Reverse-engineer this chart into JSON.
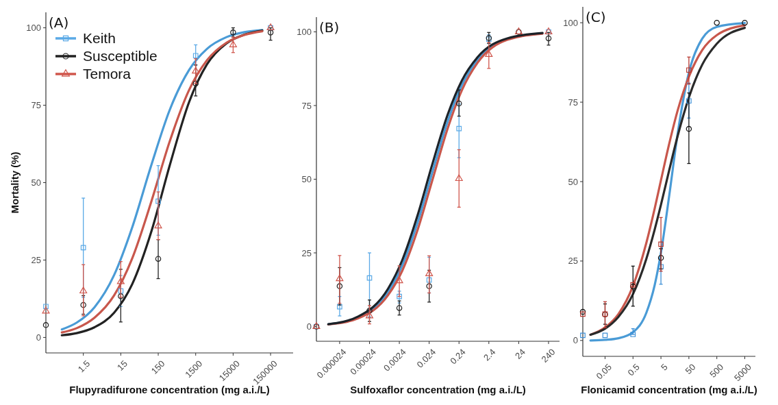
{
  "chart_data": [
    {
      "type": "scatter",
      "title": "(A)",
      "xlabel": "Flupyradifurone concentration (mg a.i./L)",
      "ylabel": "Mortality (%)",
      "log": "x",
      "xlim": [
        0.15,
        600000
      ],
      "xticks": [
        1.5,
        15,
        150,
        1500,
        15000,
        150000
      ],
      "ylim": [
        -5,
        105
      ],
      "yticks": [
        0,
        25,
        50,
        75,
        100
      ],
      "legend": "top left",
      "series": [
        {
          "name": "Keith",
          "color": "#5aa9e6",
          "marker": "square",
          "x": [
            0.15,
            1.5,
            15,
            150,
            1500,
            150000
          ],
          "values": [
            10,
            29,
            15,
            44,
            91,
            100
          ],
          "errors": [
            null,
            [
              13,
              45
            ],
            [
              10,
              20
            ],
            [
              33,
              55.5
            ],
            [
              88,
              94.5
            ],
            null
          ]
        },
        {
          "name": "Susceptible",
          "color": "#222222",
          "marker": "circle",
          "x": [
            0.15,
            1.5,
            15,
            150,
            1500,
            15000,
            150000
          ],
          "values": [
            4,
            10.5,
            13.3,
            25.4,
            82,
            98.5,
            98.5
          ],
          "errors": [
            null,
            [
              7.5,
              13.5
            ],
            [
              5,
              22
            ],
            [
              19,
              31.6
            ],
            [
              78,
              88
            ],
            [
              97,
              100
            ],
            [
              96,
              100
            ]
          ]
        },
        {
          "name": "Temora",
          "color": "#d0564c",
          "marker": "triangle",
          "x": [
            0.15,
            1.5,
            15,
            150,
            1500,
            15000,
            150000
          ],
          "values": [
            8.5,
            15,
            18,
            36,
            86,
            94.5,
            100
          ],
          "errors": [
            null,
            [
              7,
              23.5
            ],
            [
              13,
              24.5
            ],
            [
              31.6,
              47
            ],
            [
              82,
              90
            ],
            [
              92,
              97
            ],
            null
          ]
        },
        {
          "type": "line",
          "color": "#4a9bd6",
          "x": [
            0.4,
            1,
            3,
            10,
            30,
            100,
            300,
            1000,
            3000,
            10000,
            30000,
            90000
          ],
          "values": [
            2.6,
            4.8,
            9.8,
            20.2,
            35.4,
            56,
            73.3,
            86.4,
            93.2,
            97,
            98.6,
            99.3
          ]
        },
        {
          "type": "line",
          "color": "#222222",
          "x": [
            0.4,
            1,
            3,
            10,
            30,
            100,
            300,
            1000,
            3000,
            10000,
            30000,
            90000
          ],
          "values": [
            0.7,
            1.4,
            3.3,
            8,
            17.1,
            34.5,
            55.3,
            76,
            88.2,
            95,
            97.8,
            99.1
          ]
        },
        {
          "type": "line",
          "color": "#c8574c",
          "x": [
            0.4,
            1,
            3,
            10,
            30,
            100,
            300,
            1000,
            3000,
            10000,
            30000,
            90000
          ],
          "values": [
            1.6,
            3,
            6.4,
            13.6,
            25.4,
            44.2,
            63.1,
            79.9,
            89.5,
            95.2,
            97.7,
            98.9
          ]
        }
      ]
    },
    {
      "type": "scatter",
      "title": "(B)",
      "xlabel": "Sulfoxaflor concentration (mg a.i./L)",
      "log": "x",
      "xlim": [
        4e-06,
        560
      ],
      "xticks": [
        {
          "value": 2.4e-05,
          "label": "0.000024"
        },
        0.00024,
        0.0024,
        0.024,
        0.24,
        2.4,
        24,
        240
      ],
      "ylim": [
        -5,
        105
      ],
      "yticks": [
        0,
        25,
        50,
        75,
        100
      ],
      "series": [
        {
          "color": "#5aa9e6",
          "marker": "square",
          "x": [
            4e-06,
            2.4e-05,
            0.00024,
            0.0024,
            0.024,
            0.24,
            2.4,
            240
          ],
          "values": [
            0,
            6.7,
            16.5,
            10.2,
            15.8,
            67.2,
            97.5,
            100
          ],
          "errors": [
            null,
            [
              3.6,
              10.2
            ],
            [
              3.2,
              25
            ],
            [
              8,
              12
            ],
            [
              11.4,
              23.5
            ],
            [
              57.3,
              75.5
            ],
            [
              96,
              99
            ],
            null
          ]
        },
        {
          "color": "#222222",
          "marker": "circle",
          "x": [
            4e-06,
            2.4e-05,
            0.00024,
            0.0024,
            0.024,
            0.24,
            2.4,
            24,
            240
          ],
          "values": [
            0,
            13.7,
            5.4,
            6.3,
            13.7,
            75.7,
            97.9,
            100,
            97.8
          ],
          "errors": [
            null,
            [
              7.3,
              20
            ],
            [
              1.7,
              9
            ],
            [
              3.9,
              8.7
            ],
            [
              8.3,
              19.1
            ],
            [
              71.4,
              80.3
            ],
            [
              96.1,
              99.8
            ],
            null,
            [
              95.5,
              99.8
            ]
          ]
        },
        {
          "color": "#d0564c",
          "marker": "triangle",
          "x": [
            4e-06,
            2.4e-05,
            0.00024,
            0.0024,
            0.024,
            0.24,
            2.4,
            24,
            240
          ],
          "values": [
            0,
            16.2,
            3.6,
            15.5,
            17.9,
            50.2,
            92.3,
            100,
            100
          ],
          "errors": [
            null,
            [
              7.9,
              24.1
            ],
            [
              0.9,
              7.1
            ],
            [
              10.2,
              20.6
            ],
            [
              11.4,
              24
            ],
            [
              40.5,
              60
            ],
            [
              87.6,
              96.4
            ],
            null,
            null
          ]
        },
        {
          "type": "line",
          "color": "#4a9bd6",
          "x": [
            1e-05,
            0.0001,
            0.001,
            0.003,
            0.01,
            0.03,
            0.1,
            0.3,
            1,
            10,
            150
          ],
          "values": [
            0.8,
            3.1,
            11.6,
            20.7,
            35.5,
            52,
            69.6,
            81.9,
            90.5,
            97.6,
            99.5
          ]
        },
        {
          "type": "line",
          "color": "#c8574c",
          "x": [
            1e-05,
            0.0001,
            0.001,
            0.003,
            0.01,
            0.03,
            0.1,
            0.3,
            1,
            10,
            150
          ],
          "values": [
            0.7,
            2.8,
            10.6,
            18.9,
            33,
            49.3,
            67.2,
            80.2,
            89.5,
            97.3,
            99.4
          ]
        },
        {
          "type": "line",
          "color": "#1c2228",
          "x": [
            1e-05,
            0.0001,
            0.001,
            0.003,
            0.01,
            0.03,
            0.1,
            0.3,
            1,
            10,
            150
          ],
          "values": [
            0.8,
            3.4,
            12.8,
            22.5,
            38,
            54.8,
            71.9,
            83.5,
            91.4,
            97.8,
            99.6
          ]
        }
      ]
    },
    {
      "type": "scatter",
      "title": "(C)",
      "xlabel": "Flonicamid concentration (mg a.i./L)",
      "log": "x",
      "xlim": [
        0.008,
        12000
      ],
      "xticks": [
        0.05,
        0.5,
        5,
        50,
        500,
        5000
      ],
      "ylim": [
        -5,
        105
      ],
      "yticks": [
        0,
        25,
        50,
        75,
        100
      ],
      "series": [
        {
          "color": "#3d8fd6",
          "marker": "square",
          "x": [
            0.008,
            0.05,
            0.5,
            5,
            50
          ],
          "values": [
            1.6,
            1.6,
            1.9,
            23.2,
            75.4
          ],
          "errors": [
            null,
            null,
            [
              1.9,
              3.7
            ],
            [
              17.7,
              28.9
            ],
            [
              70,
              81
            ]
          ]
        },
        {
          "color": "#111111",
          "marker": "circle",
          "x": [
            0.008,
            0.05,
            0.5,
            5,
            50,
            500,
            5000
          ],
          "values": [
            9,
            8.2,
            17,
            26,
            66.6,
            100,
            100
          ],
          "errors": [
            null,
            [
              5.1,
              11.5
            ],
            [
              10.8,
              23.4
            ],
            [
              22.5,
              28.9
            ],
            [
              55.7,
              77.9
            ],
            null,
            null
          ]
        },
        {
          "color": "#b83a32",
          "marker": "square",
          "x": [
            0.008,
            0.05,
            0.5,
            5,
            50
          ],
          "values": [
            8.3,
            8.3,
            17.5,
            30.3,
            85.1
          ],
          "errors": [
            null,
            [
              4,
              12.2
            ],
            null,
            [
              21.8,
              38.7
            ],
            [
              80.7,
              89.2
            ]
          ]
        },
        {
          "type": "line",
          "color": "#4a9bd6",
          "x": [
            0.015,
            0.05,
            0.15,
            0.5,
            1.5,
            3,
            5,
            10,
            20,
            50,
            150,
            500,
            5000
          ],
          "values": [
            0,
            0.2,
            0.7,
            2.6,
            8.7,
            17.5,
            27.6,
            45.9,
            65.3,
            84.3,
            95,
            98.7,
            99.9
          ]
        },
        {
          "type": "line",
          "color": "#c8574c",
          "x": [
            0.015,
            0.05,
            0.15,
            0.5,
            1.5,
            3,
            5,
            10,
            20,
            50,
            150,
            500,
            5000
          ],
          "values": [
            1.8,
            4.1,
            8.3,
            17.2,
            30.7,
            41.6,
            50.4,
            62.1,
            72.5,
            83,
            91.4,
            96.1,
            99.2
          ]
        },
        {
          "type": "line",
          "color": "#2a2a2a",
          "x": [
            0.015,
            0.05,
            0.15,
            0.5,
            1.5,
            3,
            5,
            10,
            20,
            50,
            150,
            500,
            5000
          ],
          "values": [
            1.8,
            3.7,
            7.4,
            14.6,
            25.7,
            35,
            42.7,
            53.8,
            64.5,
            76.5,
            86.8,
            93.4,
            98.4
          ]
        }
      ]
    }
  ]
}
